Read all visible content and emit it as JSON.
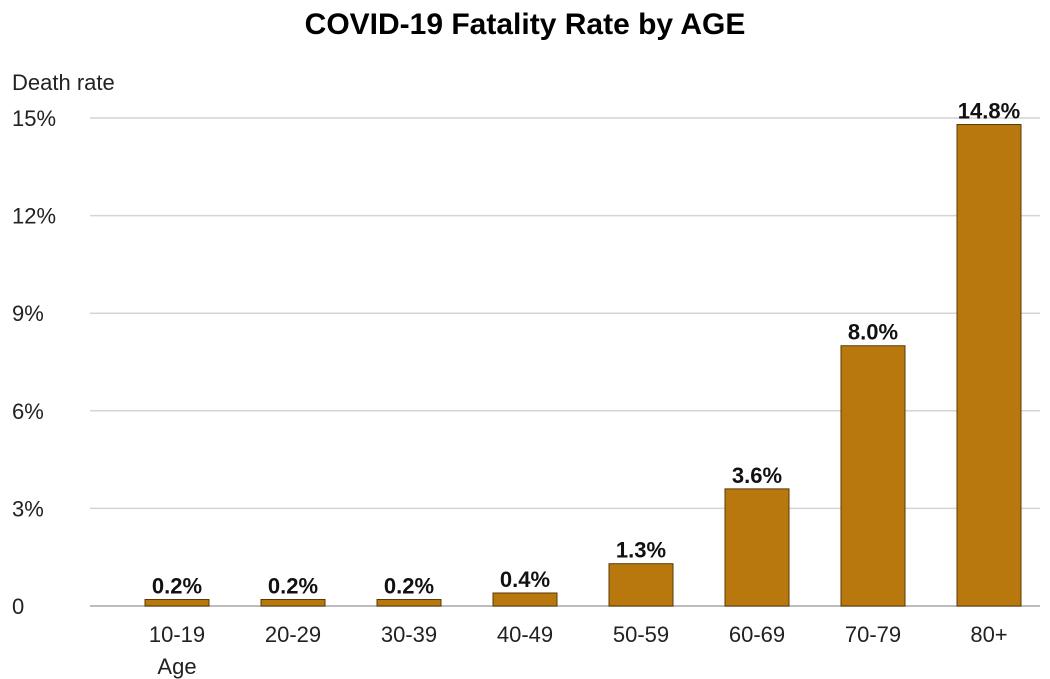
{
  "chart_data": {
    "type": "bar",
    "title": "COVID-19 Fatality Rate by AGE",
    "ylabel": "Death rate",
    "xlabel": "Age",
    "categories": [
      "10-19",
      "20-29",
      "30-39",
      "40-49",
      "50-59",
      "60-69",
      "70-79",
      "80+"
    ],
    "values": [
      0.2,
      0.2,
      0.2,
      0.4,
      1.3,
      3.6,
      8.0,
      14.8
    ],
    "data_labels": [
      "0.2%",
      "0.2%",
      "0.2%",
      "0.4%",
      "1.3%",
      "3.6%",
      "8.0%",
      "14.8%"
    ],
    "ylim": [
      0,
      15
    ],
    "yticks": [
      0,
      3,
      6,
      9,
      12,
      15
    ],
    "ytick_labels": [
      "0",
      "3%",
      "6%",
      "9%",
      "12%",
      "15%"
    ],
    "grid": true,
    "bar_color": "#B8780E",
    "bar_edge_color": "#5a3a06"
  }
}
